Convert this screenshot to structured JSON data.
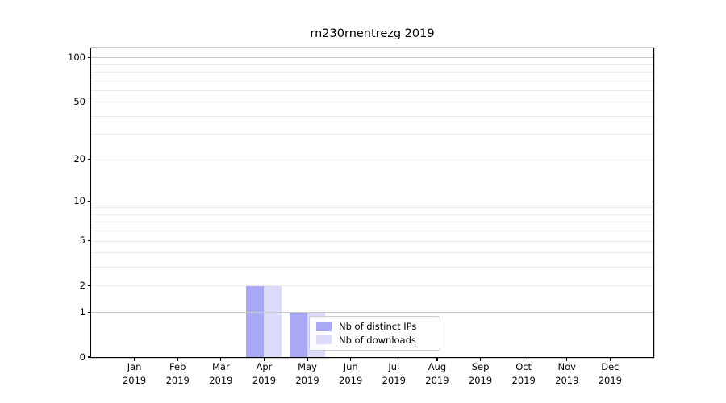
{
  "chart_data": {
    "type": "bar",
    "title": "rn230rnentrezg 2019",
    "x_year": "2019",
    "categories": [
      "Jan",
      "Feb",
      "Mar",
      "Apr",
      "May",
      "Jun",
      "Jul",
      "Aug",
      "Sep",
      "Oct",
      "Nov",
      "Dec"
    ],
    "series": [
      {
        "name": "Nb of distinct IPs",
        "color": "#a8a8f6",
        "values": [
          0,
          0,
          0,
          2,
          1,
          0,
          0,
          0,
          0,
          0,
          0,
          0
        ]
      },
      {
        "name": "Nb of downloads",
        "color": "#dcdcfa",
        "values": [
          0,
          0,
          0,
          2,
          1,
          0,
          0,
          0,
          0,
          0,
          0,
          0
        ]
      }
    ],
    "scale": "log1p",
    "ylim": [
      0,
      115
    ],
    "y_ticks": [
      0,
      1,
      2,
      5,
      10,
      20,
      50,
      100
    ],
    "y_minor_gridline_values": [
      3,
      4,
      6,
      7,
      8,
      9,
      30,
      40,
      60,
      70,
      80,
      90
    ],
    "y_decade_gridline_values": [
      1,
      10,
      100
    ],
    "grid": true,
    "legend_entries": [
      "Nb of distinct IPs",
      "Nb of downloads"
    ],
    "legend_position": "inside lower-center"
  },
  "colors": {
    "axis": "#000000",
    "grid_decade": "#c9c9c9",
    "grid_light": "#ebebeb",
    "legend_border": "#cccccc",
    "background": "#ffffff",
    "text": "#000000"
  }
}
